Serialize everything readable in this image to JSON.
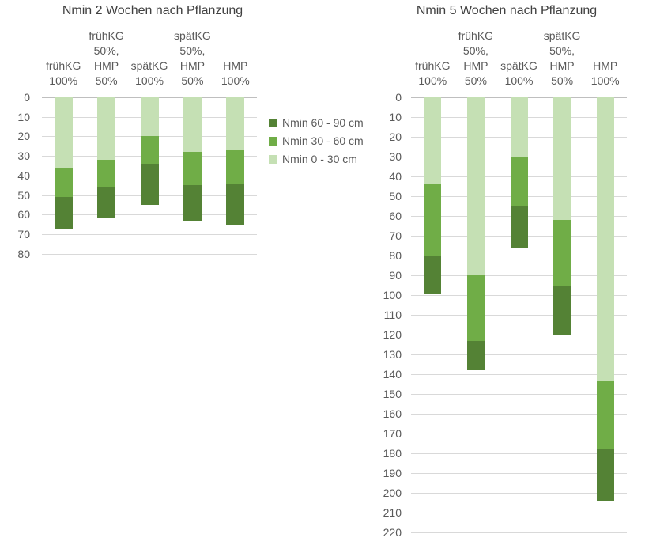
{
  "colors": {
    "light_green": "#c5e0b4",
    "medium_green": "#70ad47",
    "dark_green": "#548235",
    "gridline": "#d9d9d9",
    "axis_line": "#bfbfbf",
    "title_text": "#404040",
    "label_text": "#595959"
  },
  "legend": {
    "items": [
      {
        "label": "Nmin 60 - 90 cm",
        "color_key": "dark_green"
      },
      {
        "label": "Nmin 30 - 60 cm",
        "color_key": "medium_green"
      },
      {
        "label": "Nmin 0 - 30 cm",
        "color_key": "light_green"
      }
    ]
  },
  "chart_data": [
    {
      "type": "bar",
      "subtype": "stacked-column-downward",
      "title": "Nmin 2 Wochen nach Pflanzung",
      "categories": [
        "frühKG 100%",
        "frühKG 50%, HMP 50%",
        "spätKG 100%",
        "spätKG 50%, HMP 50%",
        "HMP 100%"
      ],
      "category_lines": [
        [
          "frühKG",
          "100%"
        ],
        [
          "frühKG",
          "50%,",
          "HMP",
          "50%"
        ],
        [
          "spätKG",
          "100%"
        ],
        [
          "spätKG",
          "50%,",
          "HMP",
          "50%"
        ],
        [
          "HMP",
          "100%"
        ]
      ],
      "series": [
        {
          "name": "Nmin 0 - 30 cm",
          "color_key": "light_green",
          "values": [
            36,
            32,
            20,
            28,
            27
          ]
        },
        {
          "name": "Nmin 30 - 60 cm",
          "color_key": "medium_green",
          "values": [
            15,
            14,
            14,
            17,
            17
          ]
        },
        {
          "name": "Nmin 60 - 90 cm",
          "color_key": "dark_green",
          "values": [
            16,
            16,
            21,
            18,
            21
          ]
        }
      ],
      "stack_totals": [
        67,
        62,
        55,
        63,
        65
      ],
      "xlabel": "",
      "ylabel": "",
      "ylim": [
        0,
        80
      ],
      "ytick_step": 10,
      "grid": true,
      "legend_position": "right-of-plot"
    },
    {
      "type": "bar",
      "subtype": "stacked-column-downward",
      "title": "Nmin 5 Wochen nach Pflanzung",
      "categories": [
        "frühKG 100%",
        "frühKG 50%, HMP 50%",
        "spätKG 100%",
        "spätKG 50%, HMP 50%",
        "HMP 100%"
      ],
      "category_lines": [
        [
          "frühKG",
          "100%"
        ],
        [
          "frühKG",
          "50%,",
          "HMP",
          "50%"
        ],
        [
          "spätKG",
          "100%"
        ],
        [
          "spätKG",
          "50%,",
          "HMP",
          "50%"
        ],
        [
          "HMP",
          "100%"
        ]
      ],
      "series": [
        {
          "name": "Nmin 0 - 30 cm",
          "color_key": "light_green",
          "values": [
            44,
            90,
            30,
            62,
            143
          ]
        },
        {
          "name": "Nmin 30 - 60 cm",
          "color_key": "medium_green",
          "values": [
            36,
            33,
            25,
            33,
            35
          ]
        },
        {
          "name": "Nmin 60 - 90 cm",
          "color_key": "dark_green",
          "values": [
            19,
            15,
            21,
            25,
            26
          ]
        }
      ],
      "stack_totals": [
        99,
        138,
        76,
        120,
        204
      ],
      "xlabel": "",
      "ylabel": "",
      "ylim": [
        0,
        220
      ],
      "ytick_step": 10,
      "grid": true,
      "legend_position": "none"
    }
  ]
}
